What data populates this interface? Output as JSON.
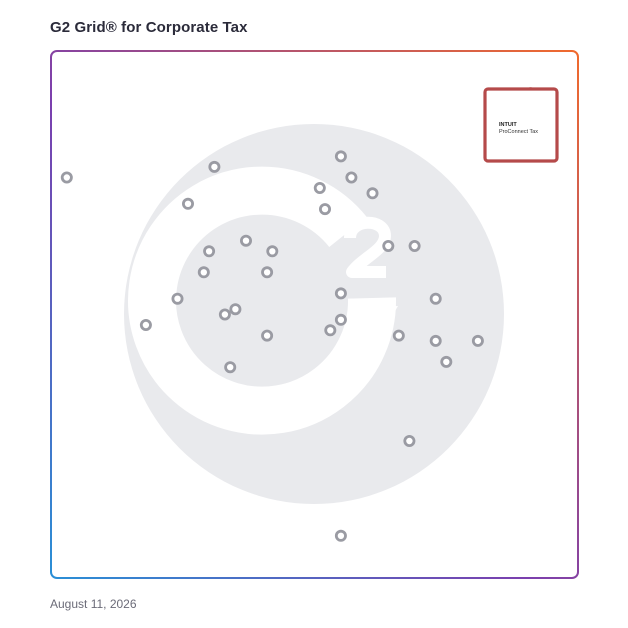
{
  "title": "G2 Grid® for Corporate Tax",
  "date": "August 11, 2026",
  "highlight": {
    "vendor": "INTUIT",
    "product": "ProConnect Tax",
    "color": "#b54a4a"
  },
  "colors": {
    "dot_stroke": "#9a9ba3",
    "watermark": "#e9eaed",
    "border_start": "#7b3fae",
    "border_end": "#f06a2d",
    "border_bottom_left": "#2a8fd6"
  },
  "chart_data": {
    "type": "scatter",
    "title": "G2 Grid® for Corporate Tax",
    "xlabel": "",
    "ylabel": "",
    "xlim": [
      0,
      1
    ],
    "ylim": [
      0,
      1
    ],
    "grid": "quadrants",
    "points": [
      {
        "x": 0.03,
        "y": 0.76
      },
      {
        "x": 0.31,
        "y": 0.78
      },
      {
        "x": 0.26,
        "y": 0.71
      },
      {
        "x": 0.55,
        "y": 0.8
      },
      {
        "x": 0.57,
        "y": 0.76
      },
      {
        "x": 0.61,
        "y": 0.73
      },
      {
        "x": 0.51,
        "y": 0.74
      },
      {
        "x": 0.52,
        "y": 0.7
      },
      {
        "x": 0.3,
        "y": 0.62
      },
      {
        "x": 0.37,
        "y": 0.64
      },
      {
        "x": 0.42,
        "y": 0.62
      },
      {
        "x": 0.29,
        "y": 0.58
      },
      {
        "x": 0.41,
        "y": 0.58
      },
      {
        "x": 0.64,
        "y": 0.63
      },
      {
        "x": 0.69,
        "y": 0.63
      },
      {
        "x": 0.24,
        "y": 0.53
      },
      {
        "x": 0.55,
        "y": 0.54
      },
      {
        "x": 0.73,
        "y": 0.53
      },
      {
        "x": 0.33,
        "y": 0.5
      },
      {
        "x": 0.35,
        "y": 0.51
      },
      {
        "x": 0.18,
        "y": 0.48
      },
      {
        "x": 0.41,
        "y": 0.46
      },
      {
        "x": 0.55,
        "y": 0.49
      },
      {
        "x": 0.53,
        "y": 0.47
      },
      {
        "x": 0.66,
        "y": 0.46
      },
      {
        "x": 0.73,
        "y": 0.45
      },
      {
        "x": 0.81,
        "y": 0.45
      },
      {
        "x": 0.34,
        "y": 0.4
      },
      {
        "x": 0.75,
        "y": 0.41
      },
      {
        "x": 0.68,
        "y": 0.26
      },
      {
        "x": 0.55,
        "y": 0.08
      },
      {
        "x": 0.91,
        "y": 0.92
      }
    ]
  }
}
